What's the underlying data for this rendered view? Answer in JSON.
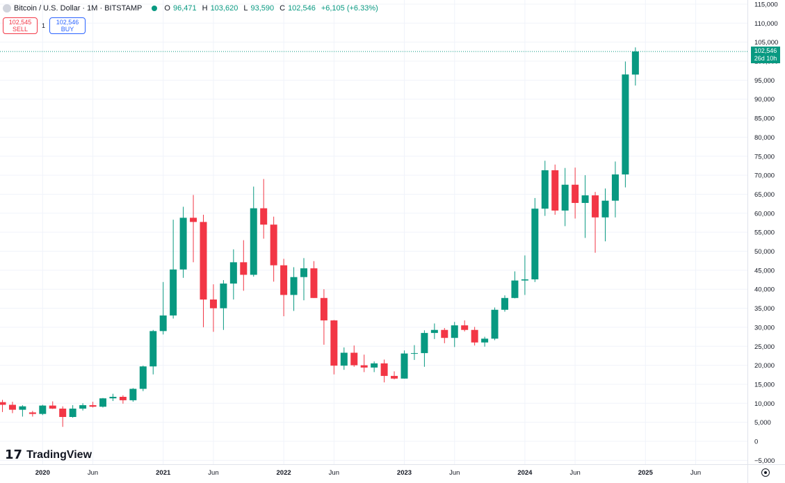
{
  "header": {
    "symbol": "Bitcoin / U.S. Dollar · 1M · BITSTAMP",
    "o_label": "O",
    "o_value": "96,471",
    "h_label": "H",
    "h_value": "103,620",
    "l_label": "L",
    "l_value": "93,590",
    "c_label": "C",
    "c_value": "102,546",
    "change": "+6,105 (+6.33%)"
  },
  "trade": {
    "sell_price": "102,545",
    "sell_label": "SELL",
    "spread": "1",
    "buy_price": "102,546",
    "buy_label": "BUY"
  },
  "last_price_tag": {
    "price": "102,546",
    "countdown": "26d 10h"
  },
  "logo_text": "TradingView",
  "colors": {
    "up": "#089981",
    "down": "#f23645",
    "grid": "#f0f3fa",
    "axis_text": "#131722"
  },
  "icons": {
    "logo": "tradingview-logo",
    "settings": "gear-icon",
    "status": "market-open-dot"
  },
  "chart_data": {
    "type": "candlestick",
    "title": "",
    "xlabel": "",
    "ylabel": "",
    "ylim": [
      -5000,
      115000
    ],
    "grid": true,
    "y_ticks": [
      -5000,
      0,
      5000,
      10000,
      15000,
      20000,
      25000,
      30000,
      35000,
      40000,
      45000,
      50000,
      55000,
      60000,
      65000,
      70000,
      75000,
      80000,
      85000,
      90000,
      95000,
      100000,
      105000,
      110000,
      115000
    ],
    "y_tick_labels": [
      "−5,000",
      "0",
      "5,000",
      "10,000",
      "15,000",
      "20,000",
      "25,000",
      "30,000",
      "35,000",
      "40,000",
      "45,000",
      "50,000",
      "55,000",
      "60,000",
      "65,000",
      "70,000",
      "75,000",
      "80,000",
      "85,000",
      "90,000",
      "95,000",
      "100,000",
      "105,000",
      "110,000",
      "115,000"
    ],
    "x_ticks": [
      {
        "label": "2020",
        "month": "2020-01"
      },
      {
        "label": "Jun",
        "month": "2020-06"
      },
      {
        "label": "2021",
        "month": "2021-01"
      },
      {
        "label": "Jun",
        "month": "2021-06"
      },
      {
        "label": "2022",
        "month": "2022-01"
      },
      {
        "label": "Jun",
        "month": "2022-06"
      },
      {
        "label": "2023",
        "month": "2023-01"
      },
      {
        "label": "Jun",
        "month": "2023-06"
      },
      {
        "label": "2024",
        "month": "2024-01"
      },
      {
        "label": "Jun",
        "month": "2024-06"
      },
      {
        "label": "2025",
        "month": "2025-01"
      },
      {
        "label": "Jun",
        "month": "2025-06"
      }
    ],
    "x_range": [
      "2019-09",
      "2025-09"
    ],
    "candles": [
      {
        "date": "2019-09",
        "o": 10300,
        "h": 10900,
        "l": 7700,
        "c": 9600
      },
      {
        "date": "2019-10",
        "o": 9600,
        "h": 10400,
        "l": 7400,
        "c": 8300
      },
      {
        "date": "2019-11",
        "o": 8300,
        "h": 9500,
        "l": 6500,
        "c": 9200
      },
      {
        "date": "2019-12",
        "o": 7600,
        "h": 8000,
        "l": 6500,
        "c": 7200
      },
      {
        "date": "2020-01",
        "o": 7200,
        "h": 9600,
        "l": 6900,
        "c": 9400
      },
      {
        "date": "2020-02",
        "o": 9400,
        "h": 10500,
        "l": 8500,
        "c": 8600
      },
      {
        "date": "2020-03",
        "o": 8600,
        "h": 9200,
        "l": 3800,
        "c": 6400
      },
      {
        "date": "2020-04",
        "o": 6400,
        "h": 9500,
        "l": 6200,
        "c": 8600
      },
      {
        "date": "2020-05",
        "o": 8600,
        "h": 10000,
        "l": 8100,
        "c": 9500
      },
      {
        "date": "2020-06",
        "o": 9500,
        "h": 10400,
        "l": 8900,
        "c": 9100
      },
      {
        "date": "2020-07",
        "o": 9100,
        "h": 11400,
        "l": 8900,
        "c": 11300
      },
      {
        "date": "2020-08",
        "o": 11300,
        "h": 12500,
        "l": 10600,
        "c": 11700
      },
      {
        "date": "2020-09",
        "o": 11700,
        "h": 12100,
        "l": 9900,
        "c": 10800
      },
      {
        "date": "2020-10",
        "o": 10800,
        "h": 14000,
        "l": 10400,
        "c": 13800
      },
      {
        "date": "2020-11",
        "o": 13800,
        "h": 19900,
        "l": 13200,
        "c": 19700
      },
      {
        "date": "2020-12",
        "o": 19700,
        "h": 29300,
        "l": 17600,
        "c": 29000
      },
      {
        "date": "2021-01",
        "o": 29000,
        "h": 41900,
        "l": 28100,
        "c": 33100
      },
      {
        "date": "2021-02",
        "o": 33100,
        "h": 58300,
        "l": 32300,
        "c": 45200
      },
      {
        "date": "2021-03",
        "o": 45200,
        "h": 61700,
        "l": 43000,
        "c": 58800
      },
      {
        "date": "2021-04",
        "o": 58800,
        "h": 64800,
        "l": 47100,
        "c": 57700
      },
      {
        "date": "2021-05",
        "o": 57700,
        "h": 59600,
        "l": 30000,
        "c": 37300
      },
      {
        "date": "2021-06",
        "o": 37300,
        "h": 41300,
        "l": 28800,
        "c": 35000
      },
      {
        "date": "2021-07",
        "o": 35000,
        "h": 42400,
        "l": 29300,
        "c": 41500
      },
      {
        "date": "2021-08",
        "o": 41500,
        "h": 50500,
        "l": 37300,
        "c": 47100
      },
      {
        "date": "2021-09",
        "o": 47100,
        "h": 52900,
        "l": 39600,
        "c": 43800
      },
      {
        "date": "2021-10",
        "o": 43800,
        "h": 67000,
        "l": 43300,
        "c": 61300
      },
      {
        "date": "2021-11",
        "o": 61300,
        "h": 69000,
        "l": 53300,
        "c": 57000
      },
      {
        "date": "2021-12",
        "o": 57000,
        "h": 59100,
        "l": 42000,
        "c": 46300
      },
      {
        "date": "2022-01",
        "o": 46300,
        "h": 48000,
        "l": 32900,
        "c": 38500
      },
      {
        "date": "2022-02",
        "o": 38500,
        "h": 45800,
        "l": 34300,
        "c": 43200
      },
      {
        "date": "2022-03",
        "o": 43200,
        "h": 48200,
        "l": 37100,
        "c": 45500
      },
      {
        "date": "2022-04",
        "o": 45500,
        "h": 47400,
        "l": 37700,
        "c": 37700
      },
      {
        "date": "2022-05",
        "o": 37700,
        "h": 40000,
        "l": 25400,
        "c": 31800
      },
      {
        "date": "2022-06",
        "o": 31800,
        "h": 31900,
        "l": 17600,
        "c": 19900
      },
      {
        "date": "2022-07",
        "o": 19900,
        "h": 24700,
        "l": 18800,
        "c": 23300
      },
      {
        "date": "2022-08",
        "o": 23300,
        "h": 25200,
        "l": 19600,
        "c": 20000
      },
      {
        "date": "2022-09",
        "o": 20000,
        "h": 22800,
        "l": 18200,
        "c": 19400
      },
      {
        "date": "2022-10",
        "o": 19400,
        "h": 21000,
        "l": 18200,
        "c": 20500
      },
      {
        "date": "2022-11",
        "o": 20500,
        "h": 21500,
        "l": 15500,
        "c": 17200
      },
      {
        "date": "2022-12",
        "o": 17200,
        "h": 18400,
        "l": 16300,
        "c": 16500
      },
      {
        "date": "2023-01",
        "o": 16500,
        "h": 23900,
        "l": 16500,
        "c": 23100
      },
      {
        "date": "2023-02",
        "o": 23100,
        "h": 25300,
        "l": 21400,
        "c": 23200
      },
      {
        "date": "2023-03",
        "o": 23200,
        "h": 29200,
        "l": 19600,
        "c": 28500
      },
      {
        "date": "2023-04",
        "o": 28500,
        "h": 31000,
        "l": 26900,
        "c": 29300
      },
      {
        "date": "2023-05",
        "o": 29300,
        "h": 29800,
        "l": 25800,
        "c": 27200
      },
      {
        "date": "2023-06",
        "o": 27200,
        "h": 31400,
        "l": 24800,
        "c": 30500
      },
      {
        "date": "2023-07",
        "o": 30500,
        "h": 31800,
        "l": 28900,
        "c": 29300
      },
      {
        "date": "2023-08",
        "o": 29300,
        "h": 30100,
        "l": 25200,
        "c": 26000
      },
      {
        "date": "2023-09",
        "o": 26000,
        "h": 27500,
        "l": 24900,
        "c": 27000
      },
      {
        "date": "2023-10",
        "o": 27000,
        "h": 35200,
        "l": 26600,
        "c": 34600
      },
      {
        "date": "2023-11",
        "o": 34600,
        "h": 38400,
        "l": 34100,
        "c": 37700
      },
      {
        "date": "2023-12",
        "o": 37700,
        "h": 44700,
        "l": 37600,
        "c": 42300
      },
      {
        "date": "2024-01",
        "o": 42300,
        "h": 48900,
        "l": 38500,
        "c": 42600
      },
      {
        "date": "2024-02",
        "o": 42600,
        "h": 64000,
        "l": 41900,
        "c": 61200
      },
      {
        "date": "2024-03",
        "o": 61200,
        "h": 73800,
        "l": 59300,
        "c": 71300
      },
      {
        "date": "2024-04",
        "o": 71300,
        "h": 72800,
        "l": 59600,
        "c": 60700
      },
      {
        "date": "2024-05",
        "o": 60700,
        "h": 71900,
        "l": 56600,
        "c": 67500
      },
      {
        "date": "2024-06",
        "o": 67500,
        "h": 72000,
        "l": 58600,
        "c": 62700
      },
      {
        "date": "2024-07",
        "o": 62700,
        "h": 70000,
        "l": 53500,
        "c": 64700
      },
      {
        "date": "2024-08",
        "o": 64700,
        "h": 65600,
        "l": 49600,
        "c": 58900
      },
      {
        "date": "2024-09",
        "o": 58900,
        "h": 66500,
        "l": 52600,
        "c": 63300
      },
      {
        "date": "2024-10",
        "o": 63300,
        "h": 73600,
        "l": 58900,
        "c": 70200
      },
      {
        "date": "2024-11",
        "o": 70200,
        "h": 99900,
        "l": 66800,
        "c": 96500
      },
      {
        "date": "2024-12",
        "o": 96471,
        "h": 103620,
        "l": 93590,
        "c": 102546
      }
    ],
    "last_price": 102546
  }
}
